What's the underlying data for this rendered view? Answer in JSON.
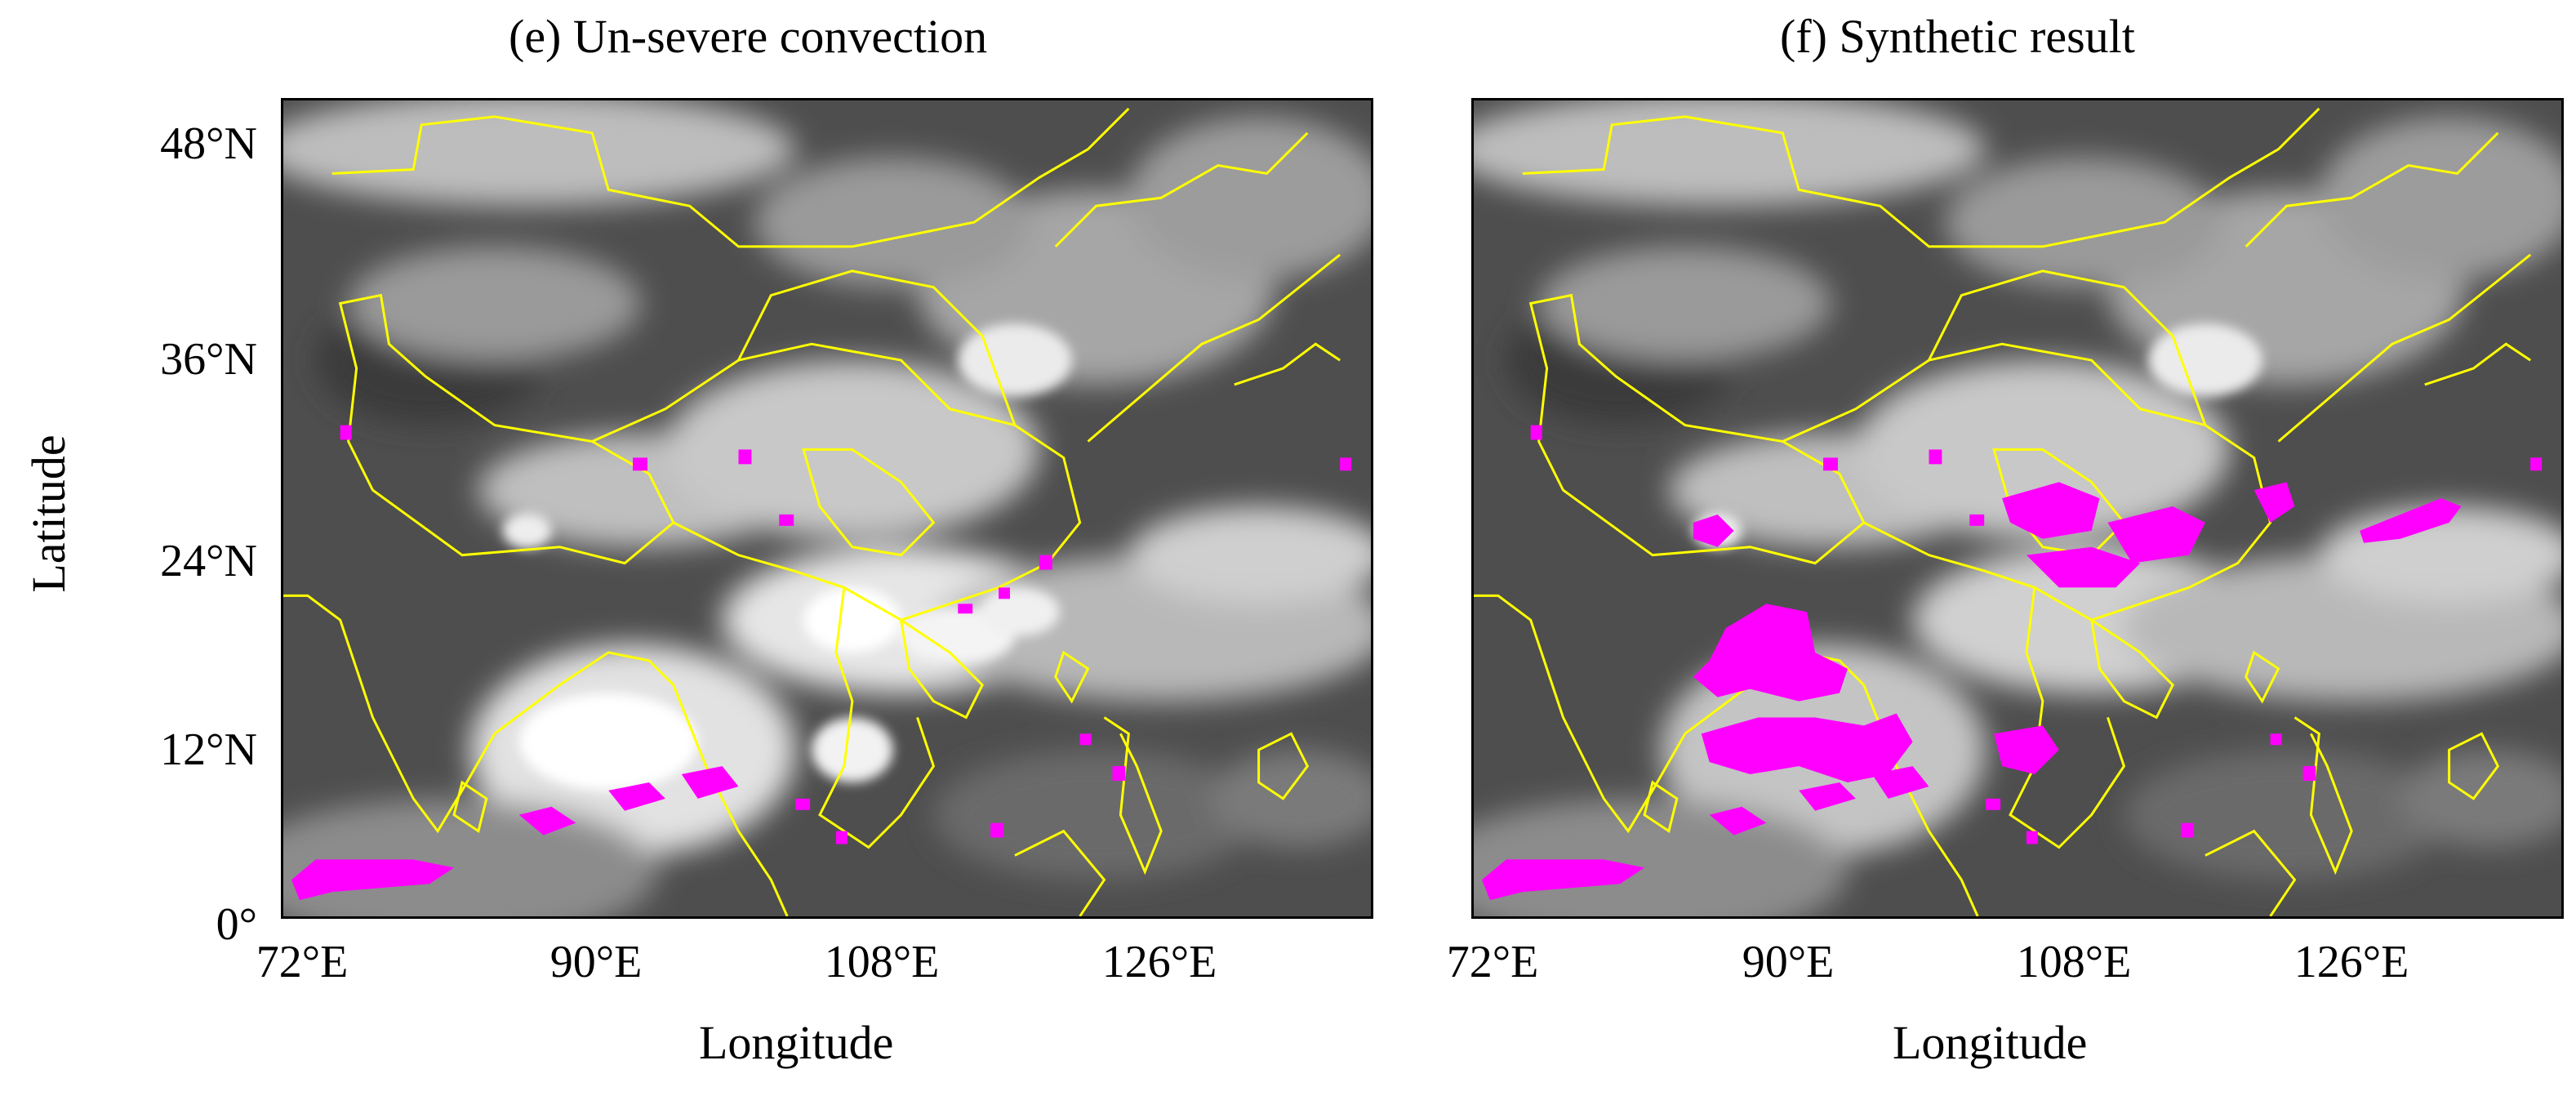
{
  "figure": {
    "ylabel": "Latitude",
    "panels": [
      {
        "id": "e",
        "title": "(e) Un-severe convection",
        "xlabel": "Longitude",
        "xticks": [
          "72°E",
          "90°E",
          "108°E",
          "126°E"
        ],
        "yticks": [
          "48°N",
          "36°N",
          "24°N",
          "12°N",
          "0°"
        ]
      },
      {
        "id": "f",
        "title": "(f) Synthetic result",
        "xlabel": "Longitude",
        "xticks": [
          "72°E",
          "90°E",
          "108°E",
          "126°E"
        ],
        "yticks": []
      }
    ]
  },
  "map": {
    "extent_lon": [
      71,
      141
    ],
    "extent_lat": [
      0,
      51
    ],
    "base": "satellite infrared cloud image (grayscale)",
    "boundary_color": "#ffff00",
    "highlight_color": "#ff00ff",
    "background_color": "#505050"
  }
}
